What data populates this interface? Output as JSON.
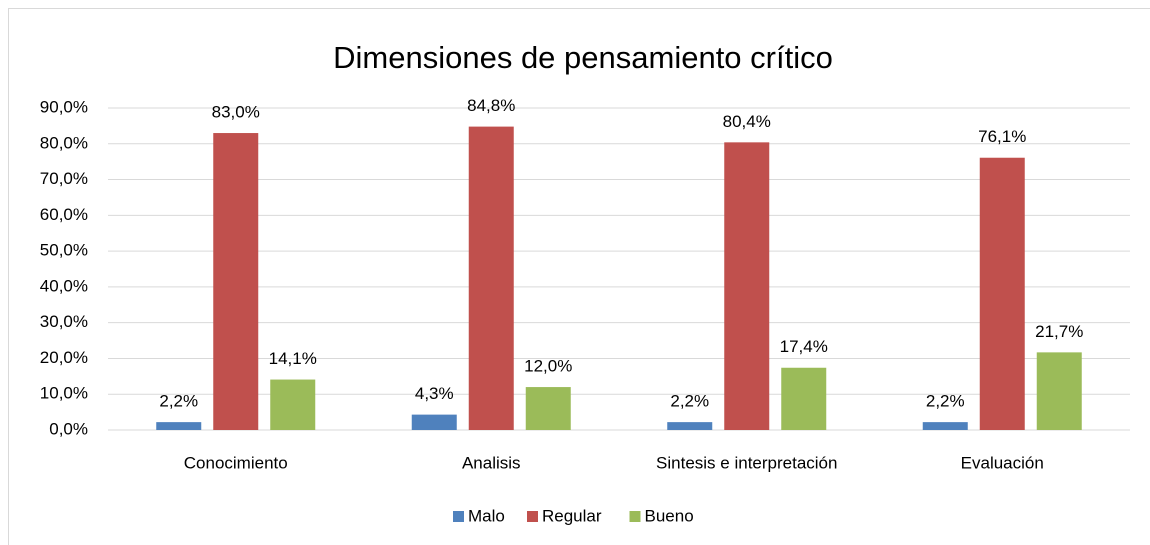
{
  "chart_data": {
    "type": "bar",
    "title": "Dimensiones de pensamiento crítico",
    "categories": [
      "Conocimiento",
      "Analisis",
      "Sintesis e interpretación",
      "Evaluación"
    ],
    "series": [
      {
        "name": "Malo",
        "color": "#4f81bd",
        "values": [
          2.2,
          4.3,
          2.2,
          2.2
        ],
        "value_labels": [
          "2,2%",
          "4,3%",
          "2,2%",
          "2,2%"
        ]
      },
      {
        "name": "Regular",
        "color": "#c0504d",
        "values": [
          83.0,
          84.8,
          80.4,
          76.1
        ],
        "value_labels": [
          "83,0%",
          "84,8%",
          "80,4%",
          "76,1%"
        ]
      },
      {
        "name": "Bueno",
        "color": "#9bbb59",
        "values": [
          14.1,
          12.0,
          17.4,
          21.7
        ],
        "value_labels": [
          "14,1%",
          "12,0%",
          "17,4%",
          "21,7%"
        ]
      }
    ],
    "ylim": [
      0,
      90
    ],
    "yticks": [
      {
        "value": 0,
        "label": "0,0%"
      },
      {
        "value": 10,
        "label": "10,0%"
      },
      {
        "value": 20,
        "label": "20,0%"
      },
      {
        "value": 30,
        "label": "30,0%"
      },
      {
        "value": 40,
        "label": "40,0%"
      },
      {
        "value": 50,
        "label": "50,0%"
      },
      {
        "value": 60,
        "label": "60,0%"
      },
      {
        "value": 70,
        "label": "70,0%"
      },
      {
        "value": 80,
        "label": "80,0%"
      },
      {
        "value": 90,
        "label": "90,0%"
      }
    ],
    "grid": true,
    "legend": "bottom"
  }
}
